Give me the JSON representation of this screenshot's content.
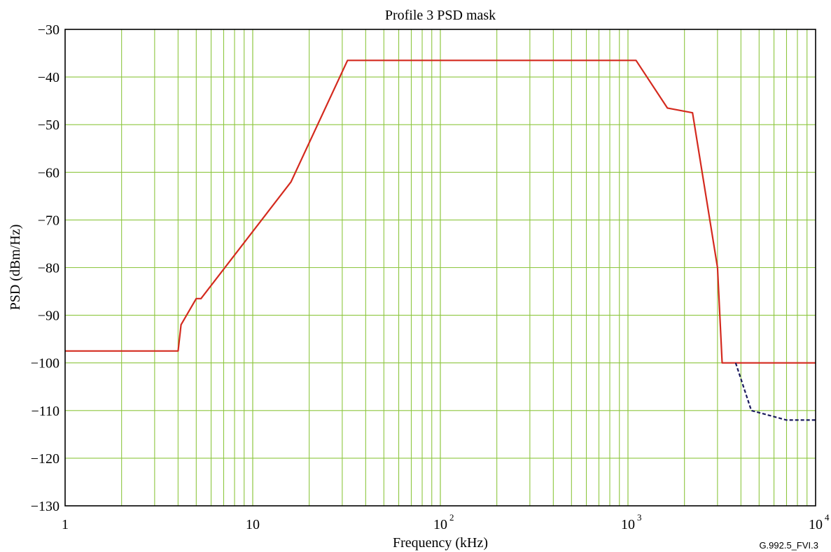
{
  "chart_data": {
    "type": "line",
    "title": "Profile 3 PSD mask",
    "xlabel": "Frequency (kHz)",
    "ylabel": "PSD (dBm/Hz)",
    "x_scale": "log",
    "xlim": [
      1,
      10000
    ],
    "ylim": [
      -130,
      -30
    ],
    "grid": true,
    "x_ticks": [
      {
        "value": 1,
        "base": "1",
        "exp": ""
      },
      {
        "value": 10,
        "base": "10",
        "exp": ""
      },
      {
        "value": 100,
        "base": "10",
        "exp": "2"
      },
      {
        "value": 1000,
        "base": "10",
        "exp": "3"
      },
      {
        "value": 10000,
        "base": "10",
        "exp": "4"
      }
    ],
    "y_ticks": [
      {
        "value": -30,
        "label": "−30"
      },
      {
        "value": -40,
        "label": "−40"
      },
      {
        "value": -50,
        "label": "−50"
      },
      {
        "value": -60,
        "label": "−60"
      },
      {
        "value": -70,
        "label": "−70"
      },
      {
        "value": -80,
        "label": "−80"
      },
      {
        "value": -90,
        "label": "−90"
      },
      {
        "value": -100,
        "label": "−100"
      },
      {
        "value": -110,
        "label": "−110"
      },
      {
        "value": -120,
        "label": "−120"
      },
      {
        "value": -130,
        "label": "−130"
      }
    ],
    "series": [
      {
        "color": "#d42a1e",
        "style": "solid",
        "x": [
          1,
          4,
          4.15,
          5,
          5.3,
          16,
          32,
          1104,
          1622,
          2208,
          3001,
          3175,
          10000
        ],
        "y": [
          -97.5,
          -97.5,
          -92,
          -86.5,
          -86.5,
          -62,
          -36.5,
          -36.5,
          -46.5,
          -47.5,
          -80,
          -100,
          -100
        ]
      },
      {
        "color": "#1a1a5e",
        "style": "dashed",
        "x": [
          3750,
          4545,
          7000,
          10000
        ],
        "y": [
          -100,
          -110,
          -112,
          -112
        ]
      }
    ],
    "annotations": [
      "G.992.5_FVI.3"
    ]
  },
  "colors": {
    "grid": "#8dc63f",
    "axis": "#000000"
  }
}
